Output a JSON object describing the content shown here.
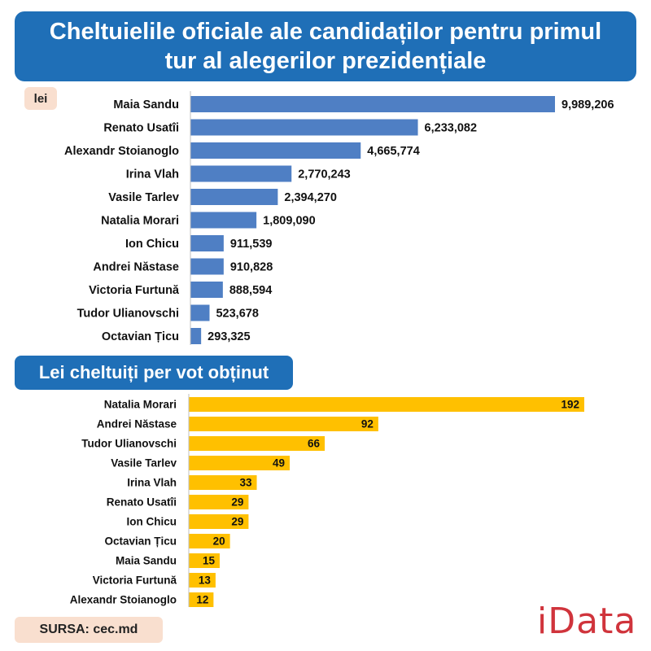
{
  "title": "Cheltuielile oficiale ale candidaților pentru primul tur al alegerilor prezidențiale",
  "unit_label": "lei",
  "section2_title": "Lei cheltuiți per vot obținut",
  "source": "SURSA: cec.md",
  "logo": "iData",
  "colors": {
    "title_bg": "#1f6fb7",
    "bar_blue": "#4f7fc4",
    "bar_yellow": "#ffc000",
    "badge_bg": "#f9dfcf",
    "logo": "#d0343c"
  },
  "chart_data": [
    {
      "type": "bar",
      "orientation": "horizontal",
      "title": "Cheltuielile oficiale ale candidaților pentru primul tur al alegerilor prezidențiale",
      "unit": "lei",
      "categories": [
        "Maia Sandu",
        "Renato Usatîi",
        "Alexandr Stoianoglo",
        "Irina Vlah",
        "Vasile Tarlev",
        "Natalia Morari",
        "Ion Chicu",
        "Andrei Năstase",
        "Victoria Furtună",
        "Tudor Ulianovschi",
        "Octavian Țicu"
      ],
      "values": [
        9989206,
        6233082,
        4665774,
        2770243,
        2394270,
        1809090,
        911539,
        910828,
        888594,
        523678,
        293325
      ],
      "value_labels": [
        "9,989,206",
        "6,233,082",
        "4,665,774",
        "2,770,243",
        "2,394,270",
        "1,809,090",
        "911,539",
        "910,828",
        "888,594",
        "523,678",
        "293,325"
      ],
      "xlim": [
        0,
        9989206
      ]
    },
    {
      "type": "bar",
      "orientation": "horizontal",
      "title": "Lei cheltuiți per vot obținut",
      "categories": [
        "Natalia Morari",
        "Andrei Năstase",
        "Tudor Ulianovschi",
        "Vasile Tarlev",
        "Irina Vlah",
        "Renato Usatîi",
        "Ion Chicu",
        "Octavian Țicu",
        "Maia Sandu",
        "Victoria Furtună",
        "Alexandr Stoianoglo"
      ],
      "values": [
        192,
        92,
        66,
        49,
        33,
        29,
        29,
        20,
        15,
        13,
        12
      ],
      "value_labels": [
        "192",
        "92",
        "66",
        "49",
        "33",
        "29",
        "29",
        "20",
        "15",
        "13",
        "12"
      ],
      "xlim": [
        0,
        192
      ]
    }
  ]
}
